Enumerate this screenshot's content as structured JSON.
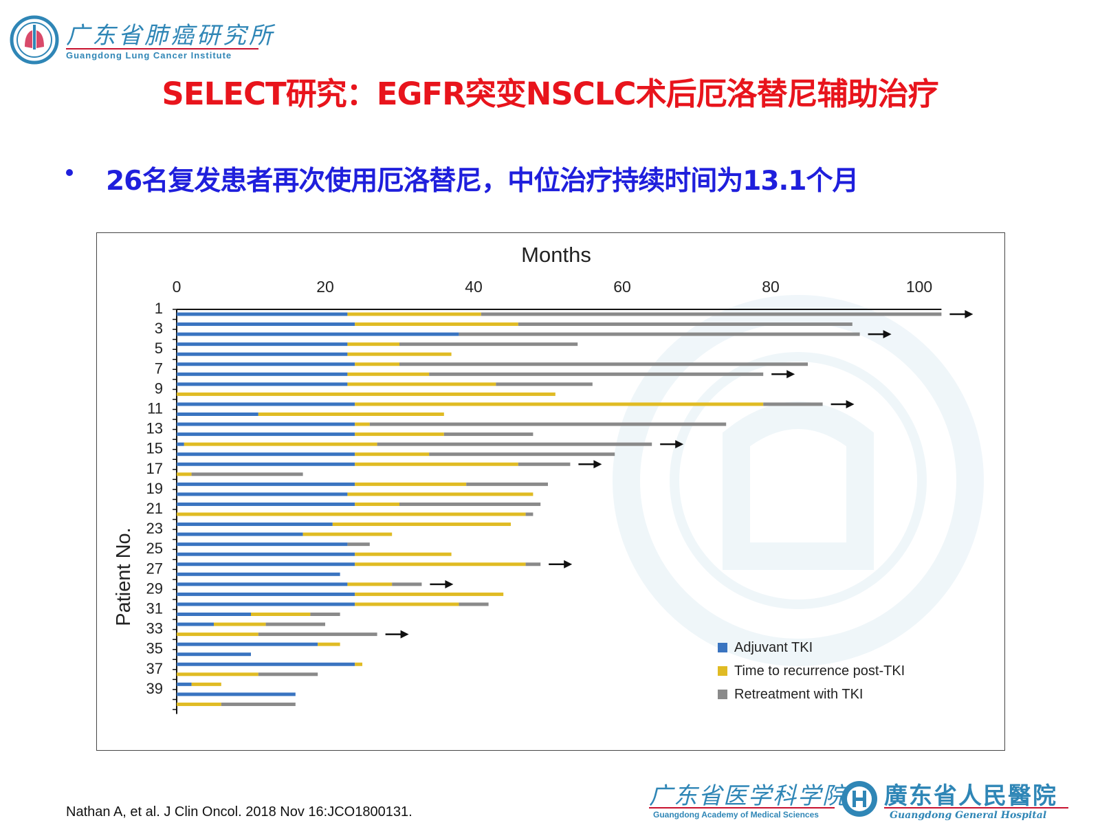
{
  "header": {
    "logo_cn": "广东省肺癌研究所",
    "logo_en": "Guangdong Lung Cancer Institute"
  },
  "slide": {
    "title": "SELECT研究：EGFR突变NSCLC术后厄洛替尼辅助治疗",
    "bullet": "26名复发患者再次使用厄洛替尼，中位治疗持续时间为13.1个月",
    "citation": "Nathan A, et al. J Clin Oncol. 2018 Nov 16:JCO1800131."
  },
  "footer": {
    "left_cn": "广东省医学科学院",
    "left_en": "Guangdong Academy of Medical Sciences",
    "right_cn": "廣东省人民醫院",
    "right_en": "Guangdong General Hospital"
  },
  "colors": {
    "title": "#e8141c",
    "bullet": "#1f1fdc",
    "adjuvant": "#3a74c0",
    "recurrence": "#e0bb24",
    "retreatment": "#8a8a8a",
    "logo": "#2f86b6"
  },
  "chart_data": {
    "type": "bar",
    "orientation": "horizontal-stacked",
    "title": "Months",
    "ylabel": "Patient No.",
    "xlim": [
      0,
      103
    ],
    "xticks": [
      0,
      20,
      40,
      60,
      80,
      100
    ],
    "ytick_labels": [
      "1",
      "3",
      "5",
      "7",
      "9",
      "11",
      "13",
      "15",
      "17",
      "19",
      "21",
      "23",
      "25",
      "27",
      "29",
      "31",
      "33",
      "35",
      "37",
      "39"
    ],
    "legend_position": "bottom-right",
    "series": [
      {
        "name": "Adjuvant TKI",
        "color": "#3a74c0"
      },
      {
        "name": "Time to recurrence post-TKI",
        "color": "#e0bb24"
      },
      {
        "name": "Retreatment with TKI",
        "color": "#8a8a8a"
      }
    ],
    "patients": [
      {
        "segments": [
          23,
          41,
          103
        ],
        "arrow": true
      },
      {
        "segments": [
          24,
          46,
          91
        ],
        "arrow": false
      },
      {
        "segments": [
          38,
          38,
          92
        ],
        "arrow": true
      },
      {
        "segments": [
          23,
          30,
          54
        ],
        "arrow": false
      },
      {
        "segments": [
          23,
          37,
          37
        ],
        "arrow": false
      },
      {
        "segments": [
          24,
          30,
          85
        ],
        "arrow": false
      },
      {
        "segments": [
          23,
          34,
          79
        ],
        "arrow": true
      },
      {
        "segments": [
          23,
          43,
          56
        ],
        "arrow": false
      },
      {
        "segments": [
          0,
          51,
          51
        ],
        "arrow": false
      },
      {
        "segments": [
          24,
          79,
          87
        ],
        "arrow": true
      },
      {
        "segments": [
          11,
          36,
          36
        ],
        "arrow": false
      },
      {
        "segments": [
          24,
          26,
          74
        ],
        "arrow": false
      },
      {
        "segments": [
          24,
          36,
          48
        ],
        "arrow": false
      },
      {
        "segments": [
          1,
          27,
          64
        ],
        "arrow": true
      },
      {
        "segments": [
          24,
          34,
          59
        ],
        "arrow": false
      },
      {
        "segments": [
          24,
          46,
          53
        ],
        "arrow": true
      },
      {
        "segments": [
          0,
          2,
          17
        ],
        "arrow": false
      },
      {
        "segments": [
          24,
          39,
          50
        ],
        "arrow": false
      },
      {
        "segments": [
          23,
          48,
          48
        ],
        "arrow": false
      },
      {
        "segments": [
          24,
          30,
          49
        ],
        "arrow": false
      },
      {
        "segments": [
          0,
          47,
          48
        ],
        "arrow": false
      },
      {
        "segments": [
          21,
          45,
          45
        ],
        "arrow": false
      },
      {
        "segments": [
          17,
          29,
          29
        ],
        "arrow": false
      },
      {
        "segments": [
          23,
          23,
          26
        ],
        "arrow": false
      },
      {
        "segments": [
          24,
          37,
          37
        ],
        "arrow": false
      },
      {
        "segments": [
          24,
          47,
          49
        ],
        "arrow": true
      },
      {
        "segments": [
          22,
          22,
          22
        ],
        "arrow": false
      },
      {
        "segments": [
          23,
          29,
          33
        ],
        "arrow": true
      },
      {
        "segments": [
          24,
          44,
          44
        ],
        "arrow": false
      },
      {
        "segments": [
          24,
          38,
          42
        ],
        "arrow": false
      },
      {
        "segments": [
          10,
          18,
          22
        ],
        "arrow": false
      },
      {
        "segments": [
          5,
          12,
          20
        ],
        "arrow": false
      },
      {
        "segments": [
          0,
          11,
          27
        ],
        "arrow": true
      },
      {
        "segments": [
          19,
          22,
          22
        ],
        "arrow": false
      },
      {
        "segments": [
          10,
          10,
          10
        ],
        "arrow": false
      },
      {
        "segments": [
          24,
          25,
          25
        ],
        "arrow": false
      },
      {
        "segments": [
          0,
          11,
          19
        ],
        "arrow": false
      },
      {
        "segments": [
          2,
          6,
          6
        ],
        "arrow": false
      },
      {
        "segments": [
          16,
          16,
          16
        ],
        "arrow": false
      },
      {
        "segments": [
          0,
          6,
          16
        ],
        "arrow": false
      }
    ]
  }
}
